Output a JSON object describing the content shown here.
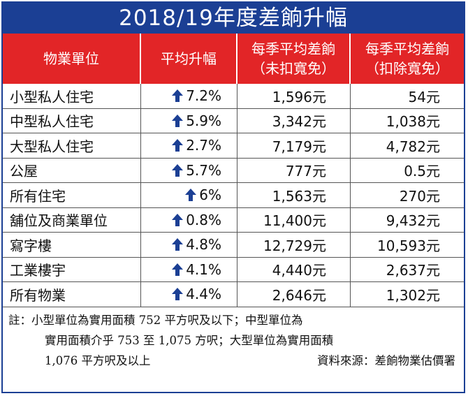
{
  "title": "2018/19年度差餉升幅",
  "headers": {
    "col1": "物業單位",
    "col2": "平均升幅",
    "col3_line1": "每季平均差餉",
    "col3_line2": "（未扣寬免）",
    "col4_line1": "每季平均差餉",
    "col4_line2": "（扣除寬免）"
  },
  "arrow_icon": "up-arrow-icon",
  "colors": {
    "title_bg": "#1b3f94",
    "header_bg": "#e22527",
    "arrow": "#1b3f94"
  },
  "rows": [
    {
      "type": "小型私人住宅",
      "rise": "7.2%",
      "before": "1,596元",
      "after": "54元"
    },
    {
      "type": "中型私人住宅",
      "rise": "5.9%",
      "before": "3,342元",
      "after": "1,038元"
    },
    {
      "type": "大型私人住宅",
      "rise": "2.7%",
      "before": "7,179元",
      "after": "4,782元"
    },
    {
      "type": "公屋",
      "rise": "5.7%",
      "before": "777元",
      "after": "0.5元"
    },
    {
      "type": "所有住宅",
      "rise": "6%",
      "before": "1,563元",
      "after": "270元"
    },
    {
      "type": "舖位及商業單位",
      "rise": "0.8%",
      "before": "11,400元",
      "after": "9,432元"
    },
    {
      "type": "寫字樓",
      "rise": "4.8%",
      "before": "12,729元",
      "after": "10,593元"
    },
    {
      "type": "工業樓宇",
      "rise": "4.1%",
      "before": "4,440元",
      "after": "2,637元"
    },
    {
      "type": "所有物業",
      "rise": "4.4%",
      "before": "2,646元",
      "after": "1,302元"
    }
  ],
  "note": {
    "line1": "註：小型單位為實用面積 752 平方呎及以下；中型單位為",
    "line2": "實用面積介乎 753 至 1,075 方呎；大型單位為實用面積",
    "line3": "1,076 平方呎及以上",
    "source": "資料來源：差餉物業估價署"
  }
}
